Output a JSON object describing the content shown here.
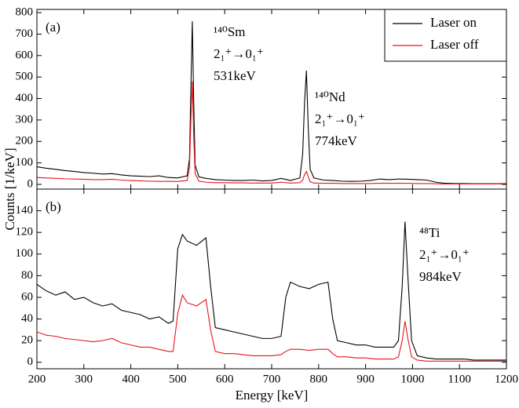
{
  "chart_data": [
    {
      "type": "line",
      "panel_label": "(a)",
      "ylabel": "Counts [1/keV]",
      "xlim": [
        200,
        1200
      ],
      "ylim": [
        -22,
        815
      ],
      "yticks": [
        0,
        100,
        200,
        300,
        400,
        500,
        600,
        700,
        800
      ],
      "x": [
        200,
        220,
        240,
        260,
        280,
        300,
        320,
        340,
        360,
        380,
        400,
        420,
        440,
        460,
        480,
        500,
        520,
        525,
        528,
        531,
        534,
        537,
        545,
        560,
        580,
        600,
        620,
        640,
        660,
        680,
        700,
        720,
        740,
        760,
        766,
        770,
        774,
        778,
        782,
        790,
        810,
        830,
        850,
        870,
        890,
        910,
        930,
        950,
        970,
        990,
        1010,
        1030,
        1050,
        1070,
        1090,
        1110,
        1130,
        1150,
        1170,
        1190,
        1200
      ],
      "series": [
        {
          "name": "Laser on",
          "color": "#000000",
          "values": [
            82,
            75,
            70,
            64,
            60,
            55,
            52,
            48,
            50,
            44,
            40,
            38,
            36,
            40,
            32,
            30,
            40,
            120,
            450,
            760,
            380,
            90,
            35,
            28,
            22,
            20,
            18,
            18,
            20,
            16,
            18,
            28,
            18,
            30,
            140,
            380,
            530,
            260,
            70,
            30,
            20,
            18,
            15,
            14,
            15,
            18,
            25,
            22,
            25,
            24,
            22,
            20,
            10,
            5,
            4,
            4,
            3,
            3,
            3,
            3,
            3
          ]
        },
        {
          "name": "Laser off",
          "color": "#e8141b",
          "values": [
            32,
            30,
            28,
            26,
            25,
            24,
            22,
            22,
            24,
            20,
            18,
            16,
            15,
            14,
            14,
            14,
            18,
            80,
            300,
            480,
            220,
            50,
            15,
            10,
            8,
            8,
            7,
            7,
            6,
            6,
            6,
            10,
            6,
            8,
            20,
            45,
            60,
            35,
            12,
            6,
            5,
            5,
            4,
            4,
            4,
            4,
            5,
            5,
            5,
            5,
            4,
            4,
            3,
            2,
            2,
            2,
            2,
            2,
            2,
            2,
            2
          ]
        }
      ],
      "legend": "upper right",
      "annotations": [
        {
          "lines": [
            "¹⁴⁰Sm",
            "2₁⁺→0₁⁺",
            "531keV"
          ]
        },
        {
          "lines": [
            "¹⁴⁰Nd",
            "2₁⁺→0₁⁺",
            "774keV"
          ]
        }
      ]
    },
    {
      "type": "line",
      "panel_label": "(b)",
      "xlabel": "Energy [keV]",
      "xlim": [
        200,
        1200
      ],
      "xticks": [
        200,
        300,
        400,
        500,
        600,
        700,
        800,
        900,
        1000,
        1100,
        1200
      ],
      "ylim": [
        -6,
        160
      ],
      "yticks": [
        0,
        20,
        40,
        60,
        80,
        100,
        120,
        140
      ],
      "x": [
        200,
        220,
        240,
        260,
        280,
        300,
        320,
        340,
        360,
        380,
        400,
        420,
        440,
        460,
        480,
        490,
        500,
        510,
        520,
        540,
        560,
        570,
        580,
        600,
        620,
        640,
        660,
        680,
        700,
        720,
        730,
        740,
        760,
        780,
        800,
        820,
        830,
        840,
        860,
        880,
        900,
        920,
        940,
        960,
        970,
        978,
        984,
        990,
        998,
        1010,
        1030,
        1050,
        1070,
        1090,
        1110,
        1130,
        1150,
        1170,
        1190,
        1200
      ],
      "series": [
        {
          "color": "#000000",
          "values": [
            72,
            66,
            62,
            65,
            58,
            60,
            55,
            52,
            54,
            48,
            46,
            44,
            40,
            42,
            36,
            38,
            105,
            118,
            112,
            108,
            115,
            70,
            32,
            30,
            28,
            26,
            24,
            22,
            22,
            24,
            60,
            74,
            70,
            68,
            72,
            74,
            40,
            20,
            18,
            16,
            16,
            14,
            14,
            14,
            20,
            70,
            130,
            80,
            20,
            6,
            4,
            3,
            3,
            3,
            3,
            2,
            2,
            2,
            2,
            2
          ]
        },
        {
          "color": "#e8141b",
          "values": [
            28,
            25,
            24,
            22,
            21,
            20,
            19,
            20,
            22,
            18,
            16,
            14,
            14,
            12,
            10,
            10,
            45,
            62,
            55,
            52,
            58,
            30,
            10,
            8,
            8,
            7,
            6,
            6,
            6,
            7,
            10,
            12,
            12,
            11,
            12,
            12,
            8,
            5,
            5,
            4,
            4,
            3,
            3,
            3,
            5,
            20,
            38,
            22,
            5,
            2,
            1,
            1,
            1,
            1,
            1,
            1,
            1,
            1,
            1,
            1
          ]
        }
      ],
      "annotations": [
        {
          "lines": [
            "⁴⁸Ti",
            "2₁⁺→0₁⁺",
            "984keV"
          ]
        }
      ]
    }
  ]
}
